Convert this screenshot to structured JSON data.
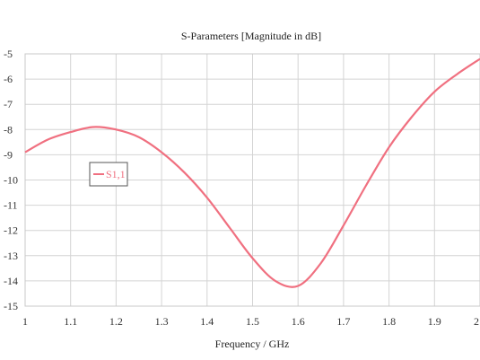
{
  "chart_data": {
    "type": "line",
    "title": "S-Parameters [Magnitude in dB]",
    "xlabel": "Frequency / GHz",
    "ylabel": "",
    "xlim": [
      1,
      2
    ],
    "ylim": [
      -15,
      -5
    ],
    "grid": true,
    "legend_position": "left",
    "x_ticks": [
      "1",
      "1.1",
      "1.2",
      "1.3",
      "1.4",
      "1.5",
      "1.6",
      "1.7",
      "1.8",
      "1.9",
      "2"
    ],
    "y_ticks": [
      "-5",
      "-6",
      "-7",
      "-8",
      "-9",
      "-10",
      "-11",
      "-12",
      "-13",
      "-14",
      "-15"
    ],
    "series": [
      {
        "name": "S1,1",
        "color": "#f07080",
        "x": [
          1.0,
          1.05,
          1.1,
          1.15,
          1.2,
          1.25,
          1.3,
          1.35,
          1.4,
          1.45,
          1.5,
          1.55,
          1.6,
          1.65,
          1.7,
          1.75,
          1.8,
          1.85,
          1.9,
          1.95,
          2.0
        ],
        "y": [
          -8.9,
          -8.4,
          -8.1,
          -7.9,
          -8.0,
          -8.3,
          -8.9,
          -9.7,
          -10.7,
          -11.9,
          -13.1,
          -14.0,
          -14.2,
          -13.3,
          -11.8,
          -10.2,
          -8.7,
          -7.5,
          -6.5,
          -5.8,
          -5.2
        ]
      }
    ]
  }
}
